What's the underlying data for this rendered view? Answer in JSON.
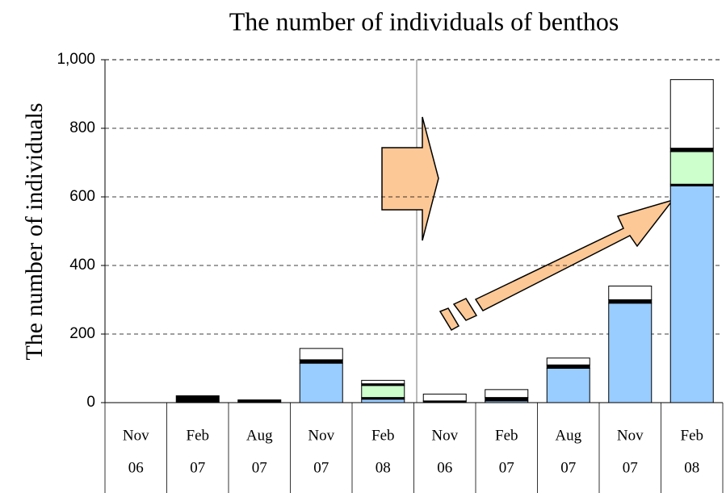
{
  "chart_data": {
    "type": "stacked_bar",
    "title": "The number of individuals of benthos",
    "y_label": "The number of individuals",
    "categories": [
      [
        "Nov",
        "06"
      ],
      [
        "Feb",
        "07"
      ],
      [
        "Aug",
        "07"
      ],
      [
        "Nov",
        "07"
      ],
      [
        "Feb",
        "08"
      ],
      [
        "Nov",
        "06"
      ],
      [
        "Feb",
        "07"
      ],
      [
        "Aug",
        "07"
      ],
      [
        "Nov",
        "07"
      ],
      [
        "Feb",
        "08"
      ]
    ],
    "series": [
      {
        "color": "#99ccff",
        "values": [
          0,
          0,
          0,
          115,
          10,
          0,
          5,
          100,
          290,
          632
        ]
      },
      {
        "color": "#000000",
        "values": [
          0,
          20,
          8,
          10,
          5,
          5,
          10,
          10,
          10,
          5
        ]
      },
      {
        "color": "#ccffcc",
        "values": [
          0,
          0,
          0,
          0,
          35,
          0,
          0,
          0,
          0,
          95
        ]
      },
      {
        "color": "#000000",
        "values": [
          0,
          0,
          0,
          0,
          5,
          0,
          0,
          0,
          0,
          10
        ]
      },
      {
        "color": "#ffffff",
        "values": [
          0,
          0,
          0,
          33,
          10,
          20,
          23,
          20,
          40,
          200
        ]
      }
    ],
    "ylim": [
      0,
      1000
    ],
    "yticks": [
      0,
      200,
      400,
      600,
      800,
      {
        "value": 1000,
        "label": "1,000"
      }
    ],
    "grid": true
  }
}
